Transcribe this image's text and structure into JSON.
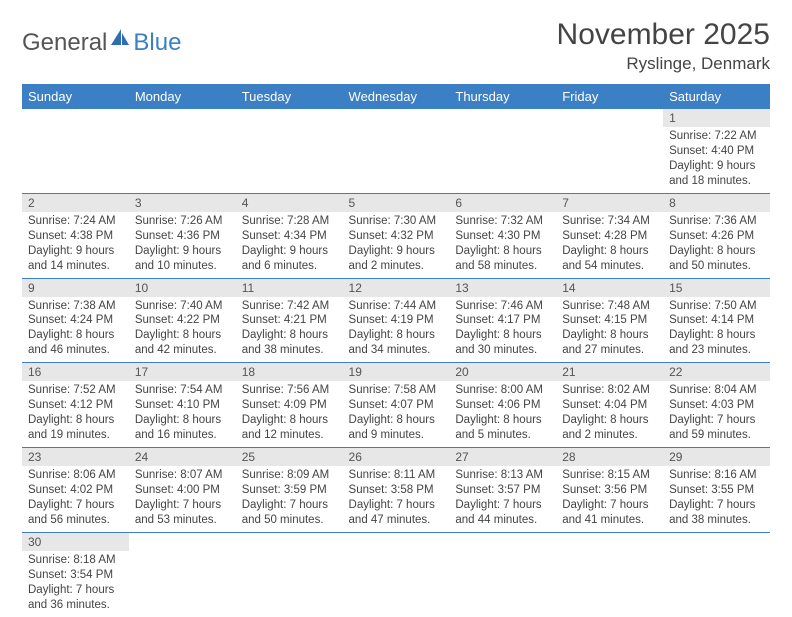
{
  "logo": {
    "general": "General",
    "blue": "Blue"
  },
  "title": "November 2025",
  "location": "Ryslinge, Denmark",
  "colors": {
    "header_bg": "#3b7fc4",
    "header_fg": "#ffffff",
    "daynum_bg": "#e7e7e7",
    "rule": "#3b7fc4",
    "text": "#444444"
  },
  "weekdays": [
    "Sunday",
    "Monday",
    "Tuesday",
    "Wednesday",
    "Thursday",
    "Friday",
    "Saturday"
  ],
  "weeks": [
    [
      null,
      null,
      null,
      null,
      null,
      null,
      {
        "n": "1",
        "sunrise": "7:22 AM",
        "sunset": "4:40 PM",
        "dl1": "9 hours",
        "dl2": "and 18 minutes."
      }
    ],
    [
      {
        "n": "2",
        "sunrise": "7:24 AM",
        "sunset": "4:38 PM",
        "dl1": "9 hours",
        "dl2": "and 14 minutes."
      },
      {
        "n": "3",
        "sunrise": "7:26 AM",
        "sunset": "4:36 PM",
        "dl1": "9 hours",
        "dl2": "and 10 minutes."
      },
      {
        "n": "4",
        "sunrise": "7:28 AM",
        "sunset": "4:34 PM",
        "dl1": "9 hours",
        "dl2": "and 6 minutes."
      },
      {
        "n": "5",
        "sunrise": "7:30 AM",
        "sunset": "4:32 PM",
        "dl1": "9 hours",
        "dl2": "and 2 minutes."
      },
      {
        "n": "6",
        "sunrise": "7:32 AM",
        "sunset": "4:30 PM",
        "dl1": "8 hours",
        "dl2": "and 58 minutes."
      },
      {
        "n": "7",
        "sunrise": "7:34 AM",
        "sunset": "4:28 PM",
        "dl1": "8 hours",
        "dl2": "and 54 minutes."
      },
      {
        "n": "8",
        "sunrise": "7:36 AM",
        "sunset": "4:26 PM",
        "dl1": "8 hours",
        "dl2": "and 50 minutes."
      }
    ],
    [
      {
        "n": "9",
        "sunrise": "7:38 AM",
        "sunset": "4:24 PM",
        "dl1": "8 hours",
        "dl2": "and 46 minutes."
      },
      {
        "n": "10",
        "sunrise": "7:40 AM",
        "sunset": "4:22 PM",
        "dl1": "8 hours",
        "dl2": "and 42 minutes."
      },
      {
        "n": "11",
        "sunrise": "7:42 AM",
        "sunset": "4:21 PM",
        "dl1": "8 hours",
        "dl2": "and 38 minutes."
      },
      {
        "n": "12",
        "sunrise": "7:44 AM",
        "sunset": "4:19 PM",
        "dl1": "8 hours",
        "dl2": "and 34 minutes."
      },
      {
        "n": "13",
        "sunrise": "7:46 AM",
        "sunset": "4:17 PM",
        "dl1": "8 hours",
        "dl2": "and 30 minutes."
      },
      {
        "n": "14",
        "sunrise": "7:48 AM",
        "sunset": "4:15 PM",
        "dl1": "8 hours",
        "dl2": "and 27 minutes."
      },
      {
        "n": "15",
        "sunrise": "7:50 AM",
        "sunset": "4:14 PM",
        "dl1": "8 hours",
        "dl2": "and 23 minutes."
      }
    ],
    [
      {
        "n": "16",
        "sunrise": "7:52 AM",
        "sunset": "4:12 PM",
        "dl1": "8 hours",
        "dl2": "and 19 minutes."
      },
      {
        "n": "17",
        "sunrise": "7:54 AM",
        "sunset": "4:10 PM",
        "dl1": "8 hours",
        "dl2": "and 16 minutes."
      },
      {
        "n": "18",
        "sunrise": "7:56 AM",
        "sunset": "4:09 PM",
        "dl1": "8 hours",
        "dl2": "and 12 minutes."
      },
      {
        "n": "19",
        "sunrise": "7:58 AM",
        "sunset": "4:07 PM",
        "dl1": "8 hours",
        "dl2": "and 9 minutes."
      },
      {
        "n": "20",
        "sunrise": "8:00 AM",
        "sunset": "4:06 PM",
        "dl1": "8 hours",
        "dl2": "and 5 minutes."
      },
      {
        "n": "21",
        "sunrise": "8:02 AM",
        "sunset": "4:04 PM",
        "dl1": "8 hours",
        "dl2": "and 2 minutes."
      },
      {
        "n": "22",
        "sunrise": "8:04 AM",
        "sunset": "4:03 PM",
        "dl1": "7 hours",
        "dl2": "and 59 minutes."
      }
    ],
    [
      {
        "n": "23",
        "sunrise": "8:06 AM",
        "sunset": "4:02 PM",
        "dl1": "7 hours",
        "dl2": "and 56 minutes."
      },
      {
        "n": "24",
        "sunrise": "8:07 AM",
        "sunset": "4:00 PM",
        "dl1": "7 hours",
        "dl2": "and 53 minutes."
      },
      {
        "n": "25",
        "sunrise": "8:09 AM",
        "sunset": "3:59 PM",
        "dl1": "7 hours",
        "dl2": "and 50 minutes."
      },
      {
        "n": "26",
        "sunrise": "8:11 AM",
        "sunset": "3:58 PM",
        "dl1": "7 hours",
        "dl2": "and 47 minutes."
      },
      {
        "n": "27",
        "sunrise": "8:13 AM",
        "sunset": "3:57 PM",
        "dl1": "7 hours",
        "dl2": "and 44 minutes."
      },
      {
        "n": "28",
        "sunrise": "8:15 AM",
        "sunset": "3:56 PM",
        "dl1": "7 hours",
        "dl2": "and 41 minutes."
      },
      {
        "n": "29",
        "sunrise": "8:16 AM",
        "sunset": "3:55 PM",
        "dl1": "7 hours",
        "dl2": "and 38 minutes."
      }
    ],
    [
      {
        "n": "30",
        "sunrise": "8:18 AM",
        "sunset": "3:54 PM",
        "dl1": "7 hours",
        "dl2": "and 36 minutes."
      },
      null,
      null,
      null,
      null,
      null,
      null
    ]
  ],
  "labels": {
    "sunrise": "Sunrise:",
    "sunset": "Sunset:",
    "daylight": "Daylight:"
  }
}
